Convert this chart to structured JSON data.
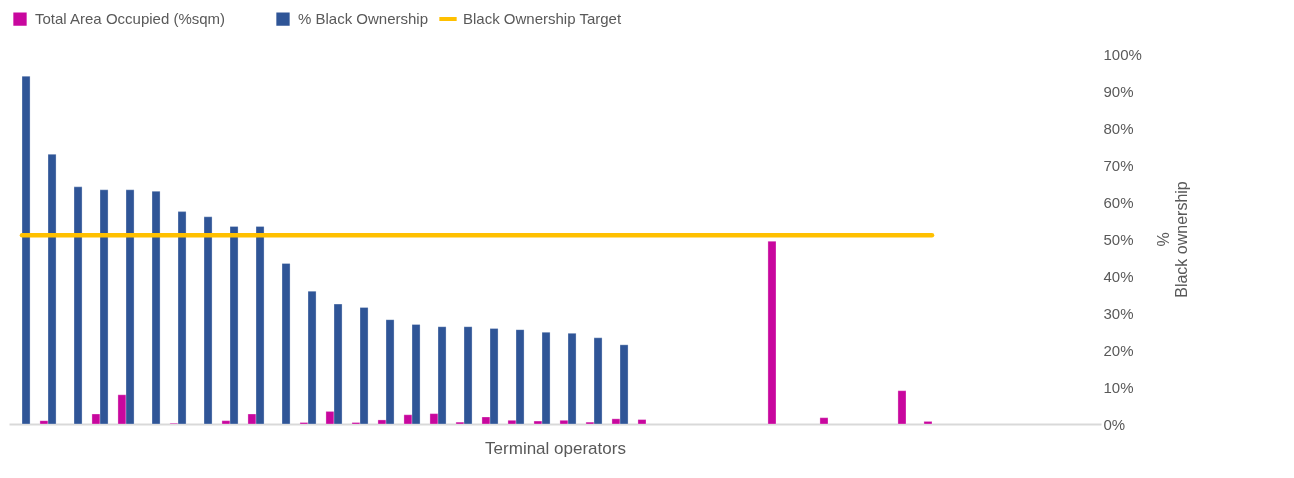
{
  "chart_data": {
    "type": "bar",
    "xlabel": "Terminal operators",
    "ylabel": "%\nBlack ownership",
    "categories": [
      null,
      null,
      null,
      null,
      null,
      null,
      null,
      null,
      null,
      null,
      null,
      null,
      null,
      null,
      null,
      null,
      null,
      null,
      null,
      null,
      null,
      null,
      null,
      null,
      null,
      null,
      null,
      null,
      null,
      null,
      null,
      null,
      null,
      null,
      null,
      null,
      null,
      null,
      null,
      null,
      null,
      null
    ],
    "series": [
      {
        "name": "Total Area Occupied (%sqm)",
        "color": "#c8079e",
        "values": [
          null,
          0.9,
          null,
          2.7,
          7.9,
          null,
          0.2,
          null,
          0.9,
          2.7,
          null,
          0.4,
          3.4,
          0.4,
          1.1,
          2.5,
          2.8,
          0.5,
          1.9,
          1.0,
          0.8,
          1.0,
          0.5,
          1.4,
          1.2,
          null,
          null,
          null,
          null,
          49.4,
          null,
          1.7,
          null,
          null,
          9.0,
          0.7,
          null,
          null,
          null,
          null,
          null,
          null
        ]
      },
      {
        "name": "% Black Ownership",
        "color": "#2f5597",
        "values": [
          94.0,
          72.9,
          64.1,
          63.3,
          63.3,
          62.9,
          57.4,
          56.0,
          53.4,
          53.4,
          43.4,
          35.9,
          32.4,
          31.5,
          28.2,
          26.9,
          26.3,
          26.3,
          25.8,
          25.5,
          24.8,
          24.5,
          23.3,
          21.4,
          null,
          null,
          null,
          null,
          null,
          null,
          null,
          null,
          null,
          null,
          null,
          null,
          null,
          null,
          null,
          null,
          null,
          null
        ]
      },
      {
        "name": "Black Ownership Target",
        "type": "line",
        "color": "#ffc000",
        "values": [
          51,
          51,
          51,
          51,
          51,
          51,
          51,
          51,
          51,
          51,
          51,
          51,
          51,
          51,
          51,
          51,
          51,
          51,
          51,
          51,
          51,
          51,
          51,
          51,
          51,
          51,
          51,
          51,
          51,
          51,
          51,
          51,
          51,
          51,
          51,
          51,
          null,
          null,
          null,
          null,
          null,
          null
        ]
      }
    ],
    "ylim": [
      0,
      100
    ],
    "yticks": [
      {
        "value": 0,
        "label": "0%"
      },
      {
        "value": 10,
        "label": "10%"
      },
      {
        "value": 20,
        "label": "20%"
      },
      {
        "value": 30,
        "label": "30%"
      },
      {
        "value": 40,
        "label": "40%"
      },
      {
        "value": 50,
        "label": "50%"
      },
      {
        "value": 60,
        "label": "60%"
      },
      {
        "value": 70,
        "label": "70%"
      },
      {
        "value": 80,
        "label": "80%"
      },
      {
        "value": 90,
        "label": "90%"
      },
      {
        "value": 100,
        "label": "100%"
      }
    ],
    "grid": false,
    "legend": "top"
  }
}
